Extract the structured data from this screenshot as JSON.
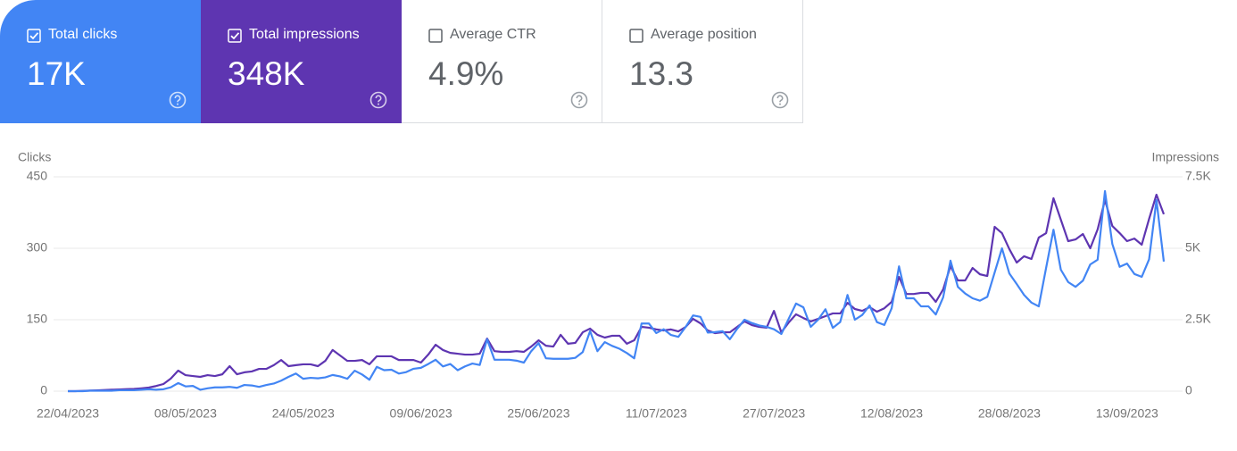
{
  "cards": [
    {
      "label": "Total clicks",
      "value": "17K",
      "checked": true,
      "color": "#4285f4"
    },
    {
      "label": "Total impressions",
      "value": "348K",
      "checked": true,
      "color": "#5e35b1"
    },
    {
      "label": "Average CTR",
      "value": "4.9%",
      "checked": false,
      "color": "#ffffff"
    },
    {
      "label": "Average position",
      "value": "13.3",
      "checked": false,
      "color": "#ffffff"
    }
  ],
  "chart_data": {
    "type": "line",
    "ylabel": "Clicks",
    "y2label": "Impressions",
    "ylim": [
      0,
      450
    ],
    "yticks": [
      0,
      150,
      300,
      450
    ],
    "y2lim": [
      0,
      7500
    ],
    "y2ticks": [
      0,
      {
        "value": 2500,
        "label": "2.5K"
      },
      {
        "value": 5000,
        "label": "5K"
      },
      {
        "value": 7500,
        "label": "7.5K"
      }
    ],
    "grid": true,
    "categories": [
      "22/04/2023",
      null,
      null,
      null,
      null,
      null,
      null,
      null,
      null,
      null,
      null,
      null,
      null,
      null,
      null,
      null,
      "08/05/2023",
      null,
      null,
      null,
      null,
      null,
      null,
      null,
      null,
      null,
      null,
      null,
      null,
      null,
      null,
      null,
      "24/05/2023",
      null,
      null,
      null,
      null,
      null,
      null,
      null,
      null,
      null,
      null,
      null,
      null,
      null,
      null,
      null,
      "09/06/2023",
      null,
      null,
      null,
      null,
      null,
      null,
      null,
      null,
      null,
      null,
      null,
      null,
      null,
      null,
      null,
      "25/06/2023",
      null,
      null,
      null,
      null,
      null,
      null,
      null,
      null,
      null,
      null,
      null,
      null,
      null,
      null,
      null,
      "11/07/2023",
      null,
      null,
      null,
      null,
      null,
      null,
      null,
      null,
      null,
      null,
      null,
      null,
      null,
      null,
      null,
      "27/07/2023",
      null,
      null,
      null,
      null,
      null,
      null,
      null,
      null,
      null,
      null,
      null,
      null,
      null,
      null,
      null,
      "12/08/2023",
      null,
      null,
      null,
      null,
      null,
      null,
      null,
      null,
      null,
      null,
      null,
      null,
      null,
      null,
      null,
      "28/08/2023",
      null,
      null,
      null,
      null,
      null,
      null,
      null,
      null,
      null,
      null,
      null,
      null,
      null,
      null,
      null,
      "13/09/2023",
      null,
      null,
      null,
      null,
      null
    ],
    "series": [
      {
        "name": "Impressions",
        "axis": "y2",
        "color": "#5e35b1",
        "values": [
          0,
          0,
          10,
          20,
          30,
          40,
          50,
          60,
          70,
          80,
          100,
          125,
          180,
          250,
          440,
          720,
          560,
          530,
          500,
          560,
          530,
          590,
          875,
          590,
          660,
          690,
          780,
          780,
          910,
          1090,
          875,
          910,
          940,
          940,
          875,
          1060,
          1440,
          1250,
          1060,
          1060,
          1090,
          940,
          1220,
          1220,
          1220,
          1090,
          1090,
          1090,
          1000,
          1280,
          1625,
          1440,
          1340,
          1310,
          1280,
          1280,
          1310,
          1840,
          1400,
          1375,
          1375,
          1400,
          1375,
          1560,
          1780,
          1590,
          1560,
          1970,
          1660,
          1690,
          2060,
          2190,
          1970,
          1875,
          1940,
          1940,
          1660,
          1780,
          2250,
          2220,
          2160,
          2125,
          2160,
          2090,
          2250,
          2530,
          2375,
          2125,
          2030,
          2060,
          2060,
          2250,
          2440,
          2310,
          2250,
          2220,
          2810,
          2060,
          2400,
          2690,
          2560,
          2440,
          2530,
          2625,
          2720,
          2720,
          3090,
          2875,
          2810,
          2940,
          2780,
          2900,
          3125,
          4000,
          3400,
          3400,
          3440,
          3440,
          3125,
          3560,
          4375,
          3875,
          3875,
          4310,
          4090,
          4030,
          5750,
          5530,
          4970,
          4500,
          4720,
          4625,
          5375,
          5530,
          6750,
          6000,
          5250,
          5310,
          5500,
          5000,
          5660,
          6690,
          5780,
          5530,
          5250,
          5340,
          5125,
          6030,
          6875,
          6190
        ]
      },
      {
        "name": "Clicks",
        "color": "#4285f4",
        "values": [
          0,
          0,
          0,
          1,
          1,
          1,
          1,
          2,
          2,
          2,
          3,
          4,
          3,
          4,
          8,
          17,
          10,
          11,
          3,
          6,
          8,
          8,
          9,
          7,
          13,
          12,
          9,
          13,
          16,
          22,
          30,
          37,
          26,
          28,
          27,
          29,
          34,
          31,
          26,
          43,
          35,
          24,
          51,
          44,
          45,
          37,
          40,
          47,
          49,
          57,
          66,
          52,
          57,
          44,
          52,
          58,
          55,
          109,
          66,
          66,
          66,
          64,
          60,
          84,
          101,
          69,
          68,
          68,
          68,
          70,
          82,
          126,
          84,
          103,
          95,
          89,
          80,
          69,
          142,
          142,
          122,
          130,
          118,
          114,
          135,
          159,
          156,
          123,
          124,
          126,
          109,
          131,
          150,
          143,
          138,
          135,
          130,
          120,
          152,
          184,
          176,
          135,
          150,
          172,
          133,
          145,
          202,
          150,
          160,
          180,
          145,
          139,
          174,
          262,
          195,
          195,
          178,
          178,
          161,
          197,
          274,
          219,
          205,
          195,
          190,
          198,
          249,
          300,
          247,
          225,
          202,
          186,
          178,
          259,
          339,
          255,
          229,
          219,
          232,
          266,
          276,
          420,
          309,
          261,
          268,
          246,
          240,
          277,
          401,
          272
        ]
      }
    ]
  }
}
